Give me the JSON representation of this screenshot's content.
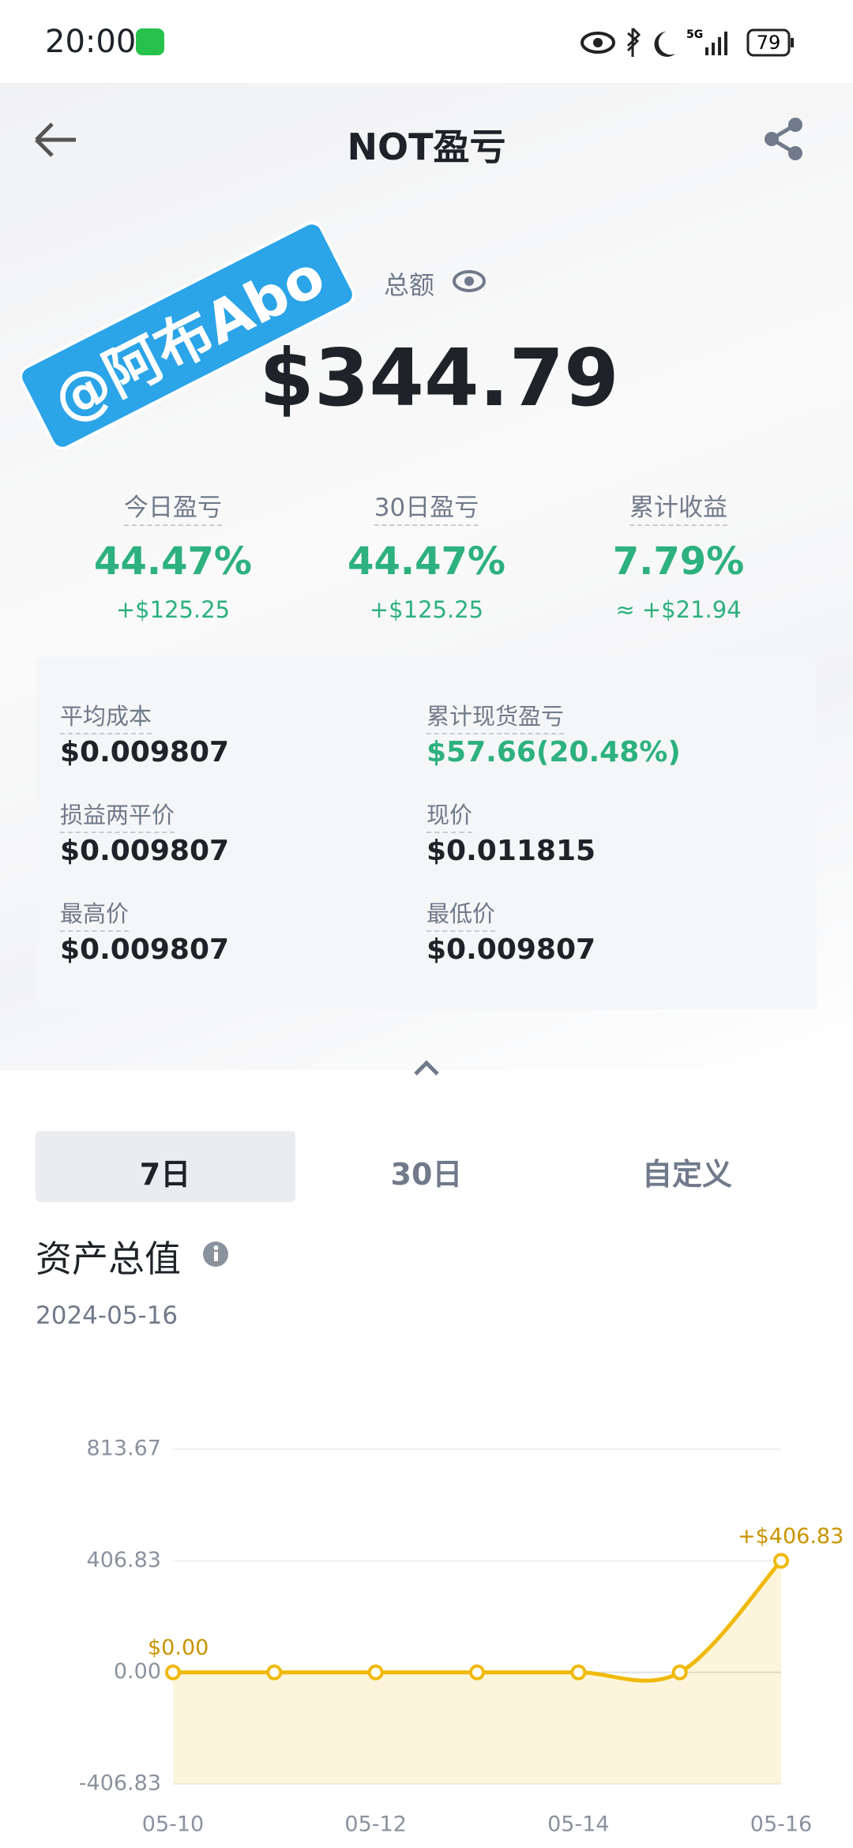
{
  "status_bar": {
    "time": "20:00",
    "network": "5G",
    "battery": "79"
  },
  "header": {
    "title": "NOT盈亏"
  },
  "watermark": "@阿布Abo",
  "summary": {
    "label": "总额",
    "total": "$344.79"
  },
  "stats": [
    {
      "label": "今日盈亏",
      "percent": "44.47%",
      "amount": "+$125.25"
    },
    {
      "label": "30日盈亏",
      "percent": "44.47%",
      "amount": "+$125.25"
    },
    {
      "label": "累计收益",
      "percent": "7.79%",
      "amount": "≈ +$21.94"
    }
  ],
  "details": [
    {
      "label": "平均成本",
      "value": "$0.009807"
    },
    {
      "label": "累计现货盈亏",
      "value": "$57.66(20.48%)",
      "color": "#2db17e"
    },
    {
      "label": "损益两平价",
      "value": "$0.009807"
    },
    {
      "label": "现价",
      "value": "$0.011815"
    },
    {
      "label": "最高价",
      "value": "$0.009807"
    },
    {
      "label": "最低价",
      "value": "$0.009807"
    }
  ],
  "tabs": [
    "7日",
    "30日",
    "自定义"
  ],
  "selected_tab": 0,
  "section": {
    "title": "资产总值",
    "date": "2024-05-16"
  },
  "chart_data": {
    "type": "area",
    "categories": [
      "05-10",
      null,
      "05-12",
      null,
      "05-14",
      null,
      "05-16"
    ],
    "values": [
      0,
      0,
      0,
      0,
      0,
      0,
      406.83
    ],
    "value_labels": [
      "$0.00",
      null,
      null,
      null,
      null,
      null,
      "+$406.83"
    ],
    "color": "#f0b90b",
    "ylim": [
      -406.83,
      813.67
    ],
    "yticks": [
      -406.83,
      {
        "value": 0,
        "label": "0.00"
      },
      406.83,
      813.67
    ],
    "grid": true
  }
}
